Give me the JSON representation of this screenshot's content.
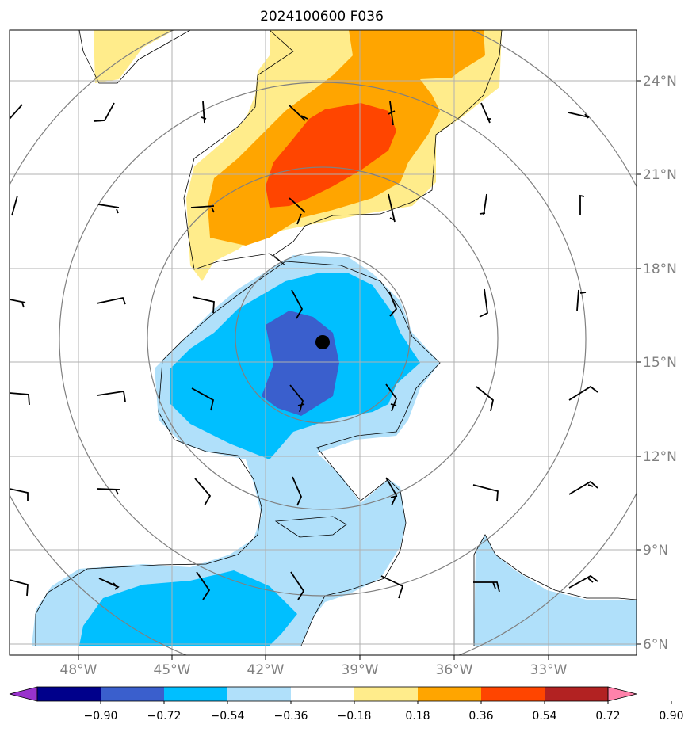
{
  "chart_data": {
    "type": "contourf",
    "title": "2024100600 F036",
    "x_ticks": [
      "48°W",
      "45°W",
      "42°W",
      "39°W",
      "36°W",
      "33°W"
    ],
    "y_ticks": [
      "24°N",
      "21°N",
      "18°N",
      "15°N",
      "12°N",
      "9°N",
      "6°N"
    ],
    "xlim": [
      "50°W",
      "30°W"
    ],
    "ylim": [
      "5.7°N",
      "25.5°N"
    ],
    "grid": true,
    "storm_center": {
      "lon": -40.2,
      "lat": 15.6
    },
    "range_rings": 4,
    "colorbar": {
      "ticks": [
        "−0.90",
        "−0.72",
        "−0.54",
        "−0.36",
        "−0.18",
        "0.18",
        "0.36",
        "0.54",
        "0.72",
        "0.90"
      ],
      "colors": [
        "#9933cc",
        "#00008b",
        "#3a5fcd",
        "#00bfff",
        "#b0e0fa",
        "#ffffff",
        "#ffec8b",
        "#ffa500",
        "#ff4500",
        "#b22222",
        "#ff82ab"
      ],
      "extend": "both"
    },
    "wind_barbs": "present"
  }
}
